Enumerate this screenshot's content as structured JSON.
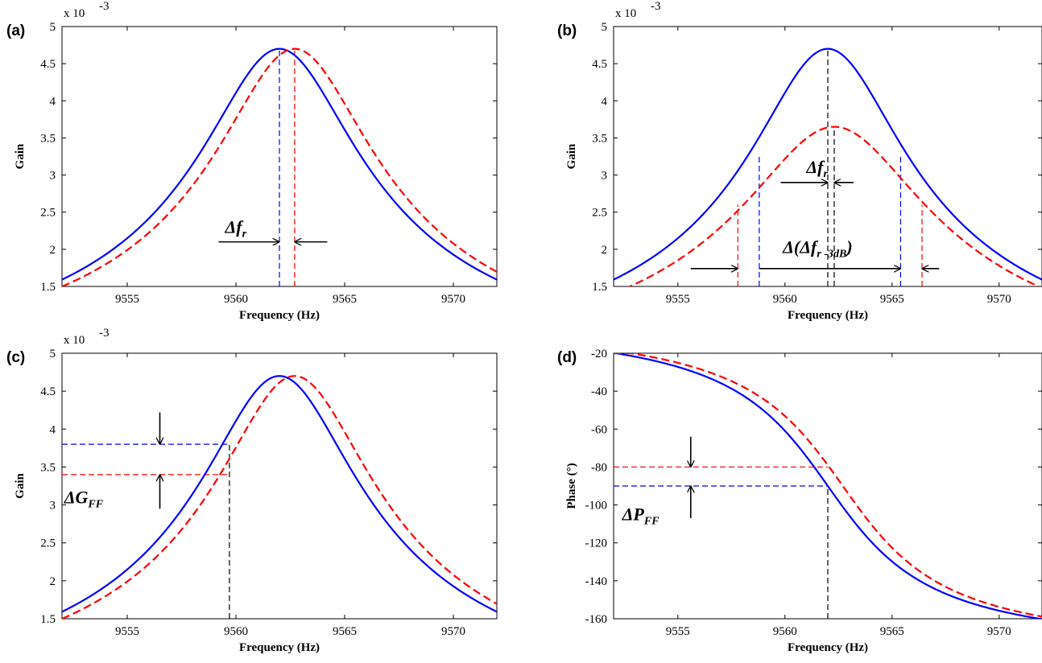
{
  "chart_data": [
    {
      "panel": "(a)",
      "type": "line",
      "xlabel": "Frequency (Hz)",
      "ylabel": "Gain",
      "xlim": [
        9552,
        9572
      ],
      "ylim": [
        1.5,
        5
      ],
      "xticks": [
        9555,
        9560,
        9565,
        9570
      ],
      "yticks": [
        1.5,
        2,
        2.5,
        3,
        3.5,
        4,
        4.5,
        5
      ],
      "ytick_labels": [
        "1.5",
        "2",
        "2.5",
        "3",
        "3.5",
        "4",
        "4.5",
        "5"
      ],
      "y_multiplier": "x 10",
      "y_multiplier_exp": "-3",
      "grid": false,
      "series": [
        {
          "color": "#0000ff",
          "style": "solid",
          "shape": "gain",
          "peak_x": 9562.0,
          "peak_y": 4.7,
          "halfwidth": 3.6
        },
        {
          "color": "#ff0000",
          "style": "dashed",
          "shape": "gain",
          "peak_x": 9562.7,
          "peak_y": 4.7,
          "halfwidth": 3.6
        }
      ],
      "vlines": [
        {
          "x": 9562.0,
          "y0": 1.5,
          "y1": 4.7,
          "color": "#0000ff"
        },
        {
          "x": 9562.7,
          "y0": 1.5,
          "y1": 4.7,
          "color": "#ff0000"
        }
      ],
      "hlines": [],
      "arrows": [
        {
          "from": [
            9559.2,
            2.1
          ],
          "to": [
            9562.0,
            2.1
          ]
        },
        {
          "from": [
            9564.2,
            2.1
          ],
          "to": [
            9562.7,
            2.1
          ]
        }
      ],
      "annotations": [
        {
          "main": "Δf",
          "sub": "r",
          "x": 9559.5,
          "y": 2.22
        }
      ]
    },
    {
      "panel": "(b)",
      "type": "line",
      "xlabel": "Frequency (Hz)",
      "ylabel": "Gain",
      "xlim": [
        9552,
        9572
      ],
      "ylim": [
        1.5,
        5
      ],
      "xticks": [
        9555,
        9560,
        9565,
        9570
      ],
      "yticks": [
        1.5,
        2,
        2.5,
        3,
        3.5,
        4,
        4.5,
        5
      ],
      "ytick_labels": [
        "1.5",
        "2",
        "2.5",
        "3",
        "3.5",
        "4",
        "4.5",
        "5"
      ],
      "y_multiplier": "x 10",
      "y_multiplier_exp": "-3",
      "grid": false,
      "series": [
        {
          "color": "#0000ff",
          "style": "solid",
          "shape": "gain",
          "peak_x": 9562.0,
          "peak_y": 4.7,
          "halfwidth": 3.6
        },
        {
          "color": "#ff0000",
          "style": "dashed",
          "shape": "gain",
          "peak_x": 9562.3,
          "peak_y": 3.65,
          "halfwidth": 4.3
        }
      ],
      "vlines": [
        {
          "x": 9562.0,
          "y0": 1.5,
          "y1": 4.7,
          "color": "#000000"
        },
        {
          "x": 9562.3,
          "y0": 1.5,
          "y1": 3.65,
          "color": "#000000"
        },
        {
          "x": 9558.8,
          "y0": 1.5,
          "y1": 3.28,
          "color": "#0000ff"
        },
        {
          "x": 9565.4,
          "y0": 1.5,
          "y1": 3.28,
          "color": "#0000ff"
        },
        {
          "x": 9557.8,
          "y0": 1.5,
          "y1": 2.6,
          "color": "#ff0000"
        },
        {
          "x": 9566.4,
          "y0": 1.5,
          "y1": 2.6,
          "color": "#ff0000"
        }
      ],
      "hlines": [],
      "arrows": [
        {
          "from": [
            9555.6,
            1.74
          ],
          "to": [
            9557.8,
            1.74
          ]
        },
        {
          "from": [
            9558.8,
            1.74
          ],
          "to": [
            9565.4,
            1.74
          ]
        },
        {
          "from": [
            9567.2,
            1.74
          ],
          "to": [
            9566.4,
            1.74
          ]
        },
        {
          "from": [
            9559.8,
            2.9
          ],
          "to": [
            9562.0,
            2.9
          ]
        },
        {
          "from": [
            9563.2,
            2.9
          ],
          "to": [
            9562.3,
            2.9
          ]
        }
      ],
      "annotations": [
        {
          "main": "Δf",
          "sub": "r",
          "x": 9561.0,
          "y": 3.03
        },
        {
          "main": "Δ(Δf",
          "sub": "r -3dB",
          "close": ")",
          "x": 9559.9,
          "y": 1.95
        }
      ]
    },
    {
      "panel": "(c)",
      "type": "line",
      "xlabel": "Frequency (Hz)",
      "ylabel": "Gain",
      "xlim": [
        9552,
        9572
      ],
      "ylim": [
        1.5,
        5
      ],
      "xticks": [
        9555,
        9560,
        9565,
        9570
      ],
      "yticks": [
        1.5,
        2,
        2.5,
        3,
        3.5,
        4,
        4.5,
        5
      ],
      "ytick_labels": [
        "1.5",
        "2",
        "2.5",
        "3",
        "3.5",
        "4",
        "4.5",
        "5"
      ],
      "y_multiplier": "x 10",
      "y_multiplier_exp": "-3",
      "grid": false,
      "series": [
        {
          "color": "#0000ff",
          "style": "solid",
          "shape": "gain",
          "peak_x": 9562.0,
          "peak_y": 4.7,
          "halfwidth": 3.6
        },
        {
          "color": "#ff0000",
          "style": "dashed",
          "shape": "gain",
          "peak_x": 9562.7,
          "peak_y": 4.7,
          "halfwidth": 3.6
        }
      ],
      "vlines": [
        {
          "x": 9559.7,
          "y0": 1.5,
          "y1": 3.8,
          "color": "#000000"
        }
      ],
      "hlines": [
        {
          "y": 3.8,
          "x0": 9552,
          "x1": 9559.7,
          "color": "#0000ff"
        },
        {
          "y": 3.4,
          "x0": 9552,
          "x1": 9559.7,
          "color": "#ff0000"
        }
      ],
      "arrows": [
        {
          "from": [
            9556.5,
            4.22
          ],
          "to": [
            9556.5,
            3.8
          ]
        },
        {
          "from": [
            9556.5,
            2.95
          ],
          "to": [
            9556.5,
            3.4
          ]
        }
      ],
      "annotations": [
        {
          "main": "ΔG",
          "sub": "FF",
          "x": 9552.1,
          "y": 3.02
        }
      ]
    },
    {
      "panel": "(d)",
      "type": "line",
      "xlabel": "Frequency (Hz)",
      "ylabel": "Phase (°)",
      "xlim": [
        9552,
        9572
      ],
      "ylim": [
        -160,
        -20
      ],
      "xticks": [
        9555,
        9560,
        9565,
        9570
      ],
      "yticks": [
        -160,
        -140,
        -120,
        -100,
        -80,
        -60,
        -40,
        -20
      ],
      "ytick_labels": [
        "-160",
        "-140",
        "-120",
        "-100",
        "-80",
        "-60",
        "-40",
        "-20"
      ],
      "y_multiplier": "",
      "y_multiplier_exp": "",
      "grid": false,
      "series": [
        {
          "color": "#0000ff",
          "style": "solid",
          "shape": "phase",
          "center_x": 9562.0,
          "halfwidth": 3.6
        },
        {
          "color": "#ff0000",
          "style": "dashed",
          "shape": "phase",
          "center_x": 9562.7,
          "halfwidth": 3.6
        }
      ],
      "vlines": [
        {
          "x": 9562.0,
          "y0": -160,
          "y1": -90,
          "color": "#000000"
        }
      ],
      "hlines": [
        {
          "y": -80,
          "x0": 9552,
          "x1": 9562.0,
          "color": "#ff0000"
        },
        {
          "y": -90,
          "x0": 9552,
          "x1": 9562.0,
          "color": "#0000ff"
        }
      ],
      "arrows": [
        {
          "from": [
            9555.6,
            -64
          ],
          "to": [
            9555.6,
            -80
          ]
        },
        {
          "from": [
            9555.6,
            -107
          ],
          "to": [
            9555.6,
            -90
          ]
        }
      ],
      "annotations": [
        {
          "main": "ΔP",
          "sub": "FF",
          "x": 9552.4,
          "y": -108
        }
      ]
    }
  ]
}
